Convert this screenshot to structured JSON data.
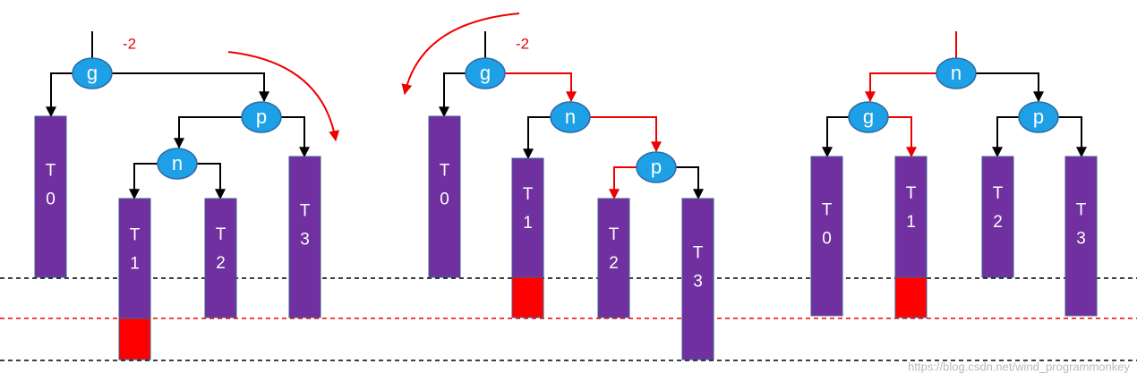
{
  "diagrams": [
    {
      "balance": "-2",
      "nodes": [
        {
          "label": "g"
        },
        {
          "label": "p"
        },
        {
          "label": "n"
        }
      ],
      "subtrees": [
        {
          "label": [
            "T",
            "0"
          ]
        },
        {
          "label": [
            "T",
            "1"
          ]
        },
        {
          "label": [
            "T",
            "2"
          ]
        },
        {
          "label": [
            "T",
            "3"
          ]
        }
      ]
    },
    {
      "balance": "-2",
      "nodes": [
        {
          "label": "g"
        },
        {
          "label": "n"
        },
        {
          "label": "p"
        }
      ],
      "subtrees": [
        {
          "label": [
            "T",
            "0"
          ]
        },
        {
          "label": [
            "T",
            "1"
          ]
        },
        {
          "label": [
            "T",
            "2"
          ]
        },
        {
          "label": [
            "T",
            "3"
          ]
        }
      ]
    },
    {
      "nodes": [
        {
          "label": "n"
        },
        {
          "label": "g"
        },
        {
          "label": "p"
        }
      ],
      "subtrees": [
        {
          "label": [
            "T",
            "0"
          ]
        },
        {
          "label": [
            "T",
            "1"
          ]
        },
        {
          "label": [
            "T",
            "2"
          ]
        },
        {
          "label": [
            "T",
            "3"
          ]
        }
      ]
    }
  ],
  "credit": "https://blog.csdn.net/wind_programmonkey"
}
